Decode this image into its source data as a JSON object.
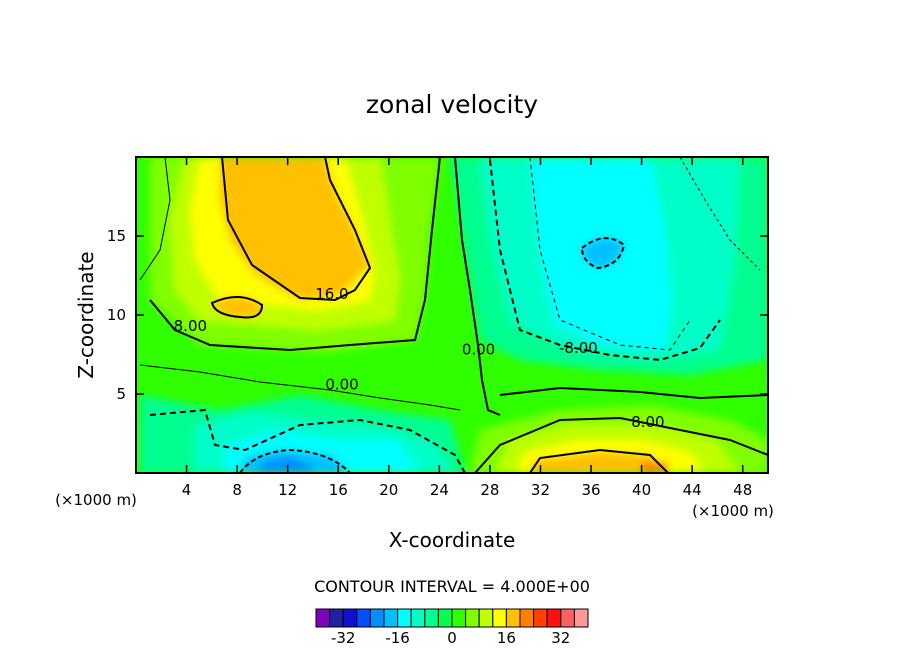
{
  "chart_data": {
    "type": "contour",
    "title": "zonal velocity",
    "xlabel": "X-coordinate",
    "ylabel": "Z-coordinate",
    "x_unit_label": "(×1000 m)",
    "xlim": [
      0,
      50
    ],
    "ylim": [
      0,
      20
    ],
    "x_ticks": [
      4,
      8,
      12,
      16,
      20,
      24,
      28,
      32,
      36,
      40,
      44,
      48
    ],
    "y_ticks": [
      5,
      10,
      15
    ],
    "contour_interval_text": "CONTOUR INTERVAL = 4.000E+00",
    "contour_labels": [
      {
        "text": "16.0",
        "x": 15.5,
        "z": 11.0
      },
      {
        "text": "8.00",
        "x": 4.3,
        "z": 9.0
      },
      {
        "text": "0.00",
        "x": 16.3,
        "z": 5.3
      },
      {
        "text": "0.00",
        "x": 27.1,
        "z": 7.5
      },
      {
        "text": "-8.00",
        "x": 35.0,
        "z": 7.6
      },
      {
        "text": "8.00",
        "x": 40.5,
        "z": 2.9
      }
    ],
    "colorbar": {
      "levels": [
        -36,
        -32,
        -28,
        -24,
        -20,
        -16,
        -12,
        -8,
        -4,
        0,
        4,
        8,
        12,
        16,
        20,
        24,
        28,
        32,
        36
      ],
      "colors": [
        "#8000c0",
        "#2020a0",
        "#1010d0",
        "#0050ff",
        "#0090ff",
        "#00c0ff",
        "#00ffff",
        "#00ffc8",
        "#00ff90",
        "#00ff50",
        "#30ff00",
        "#80ff00",
        "#c0ff00",
        "#ffff00",
        "#ffc000",
        "#ff8000",
        "#ff4000",
        "#ff1010",
        "#ff6060",
        "#ff9898"
      ],
      "tick_labels": [
        "-32",
        "-16",
        "0",
        "16",
        "32"
      ],
      "tick_values": [
        -32,
        -16,
        0,
        16,
        32
      ]
    },
    "grid": false
  }
}
